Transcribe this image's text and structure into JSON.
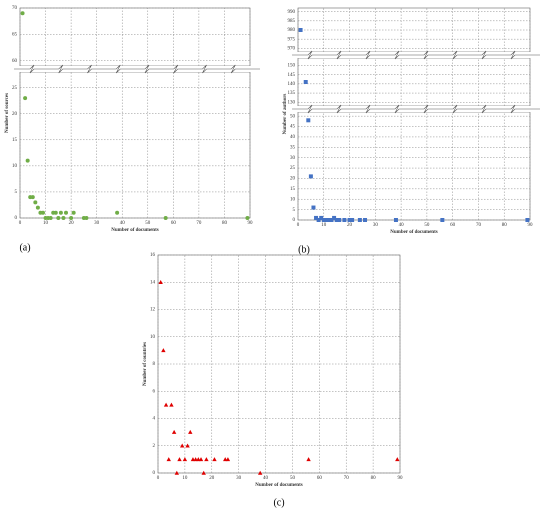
{
  "chart_data": [
    {
      "type": "scatter",
      "marker": "circle",
      "color": "#70ad47",
      "grid": true,
      "xlabel": "Number of documents",
      "ylabel": "Number of sources",
      "panel_label": "(a)",
      "xlim": [
        0,
        90
      ],
      "xticks": [
        0,
        10,
        20,
        30,
        40,
        50,
        60,
        70,
        80,
        90
      ],
      "y_segments": [
        {
          "ylim": [
            0,
            28
          ],
          "yticks": [
            0,
            5,
            10,
            15,
            20,
            25
          ]
        },
        {
          "ylim": [
            59,
            70
          ],
          "yticks": [
            60,
            65,
            70
          ]
        }
      ],
      "x": [
        1,
        2,
        3,
        4,
        5,
        6,
        7,
        8,
        9,
        10,
        11,
        12,
        13,
        14,
        15,
        16,
        17,
        18,
        20,
        21,
        25,
        26,
        38,
        57,
        89
      ],
      "values": [
        69,
        23,
        11,
        4,
        4,
        3,
        2,
        1,
        1,
        0,
        0,
        0,
        1,
        1,
        0,
        1,
        0,
        1,
        0,
        1,
        0,
        0,
        1,
        0,
        0
      ]
    },
    {
      "type": "scatter",
      "marker": "square",
      "color": "#4472c4",
      "grid": true,
      "xlabel": "Number of documents",
      "ylabel": "Number of authors",
      "panel_label": "(b)",
      "xlim": [
        0,
        90
      ],
      "xticks": [
        0,
        10,
        20,
        30,
        40,
        50,
        60,
        70,
        80,
        90
      ],
      "y_segments": [
        {
          "ylim": [
            0,
            52
          ],
          "yticks": [
            0,
            5,
            10,
            15,
            20,
            25,
            30,
            35,
            40,
            45,
            50
          ]
        },
        {
          "ylim": [
            128,
            154
          ],
          "yticks": [
            130,
            135,
            140,
            145,
            150
          ]
        },
        {
          "ylim": [
            968,
            992
          ],
          "yticks": [
            970,
            975,
            980,
            985,
            990
          ]
        }
      ],
      "x": [
        1,
        3,
        4,
        5,
        6,
        7,
        8,
        9,
        10,
        11,
        12,
        13,
        14,
        15,
        16,
        18,
        20,
        21,
        24,
        26,
        38,
        56,
        89
      ],
      "values": [
        980,
        141,
        48,
        21,
        6,
        1,
        0,
        1,
        0,
        0,
        0,
        0,
        1,
        0,
        0,
        0,
        0,
        0,
        0,
        0,
        0,
        0,
        0
      ]
    },
    {
      "type": "scatter",
      "marker": "triangle",
      "color": "#e00000",
      "grid": true,
      "xlabel": "Number of documents",
      "ylabel": "Number of countries",
      "panel_label": "(c)",
      "xlim": [
        0,
        90
      ],
      "xticks": [
        0,
        10,
        20,
        30,
        40,
        50,
        60,
        70,
        80,
        90
      ],
      "ylim": [
        0,
        16
      ],
      "yticks": [
        0,
        2,
        4,
        6,
        8,
        10,
        12,
        14,
        16
      ],
      "x": [
        1,
        2,
        3,
        4,
        5,
        6,
        7,
        8,
        9,
        10,
        11,
        12,
        13,
        14,
        15,
        16,
        17,
        18,
        21,
        25,
        26,
        38,
        56,
        89
      ],
      "values": [
        14,
        9,
        5,
        1,
        5,
        3,
        0,
        1,
        2,
        1,
        2,
        3,
        1,
        1,
        1,
        1,
        0,
        1,
        1,
        1,
        1,
        0,
        1,
        1
      ]
    }
  ]
}
